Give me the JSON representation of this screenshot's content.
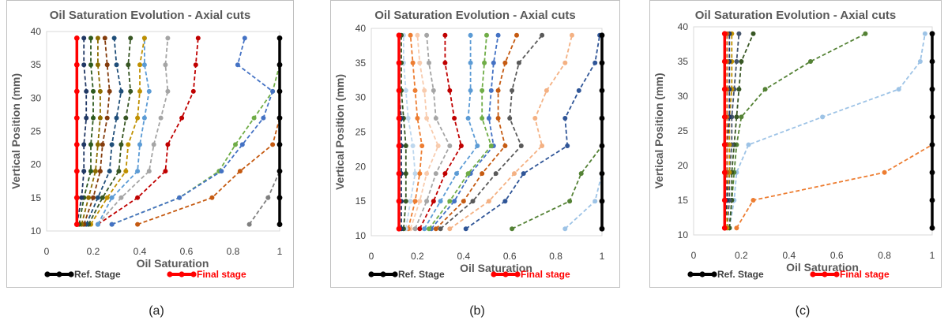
{
  "captions": [
    "(a)",
    "(b)",
    "(c)"
  ],
  "chart_data": [
    {
      "type": "line",
      "title": "Oil Saturation Evolution - Axial cuts",
      "xlabel": "Oil Saturation",
      "ylabel": "Vertical Position (mm)",
      "xlim": [
        0,
        1
      ],
      "ylim": [
        10,
        40
      ],
      "xticks": [
        "0",
        "0.2",
        "0.4",
        "0.6",
        "0.8",
        "1"
      ],
      "yticks": [
        "10",
        "15",
        "20",
        "25",
        "30",
        "35",
        "40"
      ],
      "y": [
        11,
        15,
        19,
        23,
        27,
        31,
        35,
        39
      ],
      "legend": [
        {
          "label": "Ref. Stage",
          "color": "#000000"
        },
        {
          "label": "Final stage",
          "color": "#ff0000"
        }
      ],
      "series": [
        {
          "name": "s1",
          "color": "#7f7f7f",
          "values": [
            0.87,
            0.95,
            1.0,
            null,
            null,
            null,
            null,
            null
          ]
        },
        {
          "name": "s2",
          "color": "#c55a11",
          "values": [
            0.39,
            0.71,
            0.83,
            0.97,
            1.0,
            null,
            null,
            null
          ]
        },
        {
          "name": "s3",
          "color": "#70ad47",
          "values": [
            0.28,
            0.57,
            0.74,
            0.81,
            0.89,
            0.97,
            1.0,
            null
          ]
        },
        {
          "name": "s4",
          "color": "#4472c4",
          "values": [
            0.28,
            0.57,
            0.75,
            0.84,
            0.93,
            0.97,
            0.82,
            0.85
          ]
        },
        {
          "name": "s5",
          "color": "#c00000",
          "values": [
            0.22,
            0.39,
            0.51,
            0.52,
            0.58,
            0.63,
            0.64,
            0.65
          ]
        },
        {
          "name": "s6",
          "color": "#a5a5a5",
          "values": [
            0.22,
            0.32,
            0.44,
            0.46,
            0.49,
            0.52,
            0.51,
            0.52
          ]
        },
        {
          "name": "s7",
          "color": "#5b9bd5",
          "values": [
            0.22,
            0.28,
            0.39,
            0.4,
            0.42,
            0.44,
            0.42,
            0.42
          ]
        },
        {
          "name": "s8",
          "color": "#bf9000",
          "values": [
            0.19,
            0.26,
            0.34,
            0.35,
            0.39,
            0.4,
            0.4,
            0.42
          ]
        },
        {
          "name": "s9",
          "color": "#375623",
          "values": [
            0.18,
            0.24,
            0.31,
            0.32,
            0.34,
            0.36,
            0.35,
            0.36
          ]
        },
        {
          "name": "s10",
          "color": "#1f4e79",
          "values": [
            0.17,
            0.22,
            0.27,
            0.28,
            0.3,
            0.32,
            0.3,
            0.29
          ]
        },
        {
          "name": "s11",
          "color": "#843c0c",
          "values": [
            0.16,
            0.2,
            0.23,
            0.24,
            0.26,
            0.27,
            0.26,
            0.25
          ]
        },
        {
          "name": "s12",
          "color": "#8c6d00",
          "values": [
            0.15,
            0.18,
            0.21,
            0.22,
            0.23,
            0.23,
            0.22,
            0.22
          ]
        },
        {
          "name": "s13",
          "color": "#2e5a1e",
          "values": [
            0.14,
            0.16,
            0.19,
            0.19,
            0.2,
            0.2,
            0.19,
            0.19
          ]
        },
        {
          "name": "s14",
          "color": "#203864",
          "values": [
            0.13,
            0.15,
            0.16,
            0.16,
            0.17,
            0.17,
            0.16,
            0.16
          ]
        },
        {
          "name": "Ref. Stage",
          "color": "#000000",
          "solid": true,
          "values": [
            1,
            1,
            1,
            1,
            1,
            1,
            1,
            1
          ]
        },
        {
          "name": "Final stage",
          "color": "#ff0000",
          "solid": true,
          "values": [
            0.13,
            0.13,
            0.13,
            0.13,
            0.13,
            0.13,
            0.13,
            0.13
          ]
        }
      ]
    },
    {
      "type": "line",
      "title": "Oil Saturation Evolution - Axial cuts",
      "xlabel": "Oil Saturation",
      "ylabel": "Vertical Position (mm)",
      "xlim": [
        0,
        1
      ],
      "ylim": [
        10,
        40
      ],
      "xticks": [
        "0",
        "0.2",
        "0.4",
        "0.6",
        "0.8",
        "1"
      ],
      "yticks": [
        "10",
        "15",
        "20",
        "25",
        "30",
        "35",
        "40"
      ],
      "y": [
        11,
        15,
        19,
        23,
        27,
        31,
        35,
        39
      ],
      "legend": [
        {
          "label": "Ref. Stage",
          "color": "#000000"
        },
        {
          "label": "Final stage",
          "color": "#ff0000"
        }
      ],
      "series": [
        {
          "name": "s1",
          "color": "#9dc3e6",
          "values": [
            0.84,
            0.97,
            1.0,
            null,
            null,
            null,
            null,
            null
          ]
        },
        {
          "name": "s2",
          "color": "#548235",
          "values": [
            0.61,
            0.86,
            0.91,
            1.0,
            null,
            null,
            null,
            null
          ]
        },
        {
          "name": "s3",
          "color": "#2f5597",
          "values": [
            0.41,
            0.58,
            0.66,
            0.85,
            0.84,
            0.9,
            0.97,
            0.99
          ]
        },
        {
          "name": "s4",
          "color": "#f4b183",
          "values": [
            0.34,
            0.51,
            0.62,
            0.74,
            0.71,
            0.76,
            0.84,
            0.87
          ]
        },
        {
          "name": "s5",
          "color": "#595959",
          "values": [
            0.3,
            0.44,
            0.54,
            0.65,
            0.6,
            0.61,
            0.64,
            0.74
          ]
        },
        {
          "name": "s6",
          "color": "#c55a11",
          "values": [
            0.28,
            0.4,
            0.48,
            0.58,
            0.55,
            0.55,
            0.58,
            0.63
          ]
        },
        {
          "name": "s7",
          "color": "#4472c4",
          "values": [
            0.26,
            0.36,
            0.43,
            0.53,
            0.51,
            0.52,
            0.53,
            0.55
          ]
        },
        {
          "name": "s8",
          "color": "#70ad47",
          "values": [
            0.25,
            0.34,
            0.42,
            0.52,
            0.48,
            0.48,
            0.49,
            0.5
          ]
        },
        {
          "name": "s9",
          "color": "#5b9bd5",
          "values": [
            0.23,
            0.3,
            0.37,
            0.46,
            0.42,
            0.43,
            0.43,
            0.43
          ]
        },
        {
          "name": "s10",
          "color": "#c00000",
          "values": [
            0.21,
            0.27,
            0.32,
            0.39,
            0.36,
            0.34,
            0.32,
            0.32
          ]
        },
        {
          "name": "s11",
          "color": "#a5a5a5",
          "values": [
            0.19,
            0.24,
            0.28,
            0.34,
            0.28,
            0.27,
            0.25,
            0.24
          ]
        },
        {
          "name": "s12",
          "color": "#f8cbad",
          "values": [
            0.17,
            0.21,
            0.24,
            0.29,
            0.24,
            0.23,
            0.21,
            0.2
          ]
        },
        {
          "name": "s13",
          "color": "#ed7d31",
          "values": [
            0.16,
            0.19,
            0.21,
            0.22,
            0.2,
            0.19,
            0.18,
            0.17
          ]
        },
        {
          "name": "s14",
          "color": "#bdd7ee",
          "values": [
            0.15,
            0.17,
            0.19,
            0.18,
            0.16,
            0.15,
            0.14,
            0.14
          ]
        },
        {
          "name": "s15",
          "color": "#375623",
          "values": [
            0.14,
            0.15,
            0.15,
            0.15,
            0.14,
            0.13,
            0.13,
            0.13
          ]
        },
        {
          "name": "s16",
          "color": "#1f3864",
          "values": [
            0.13,
            0.13,
            0.13,
            0.13,
            0.13,
            0.12,
            0.12,
            0.12
          ]
        },
        {
          "name": "Ref. Stage",
          "color": "#000000",
          "solid": true,
          "values": [
            1,
            1,
            1,
            1,
            1,
            1,
            1,
            1
          ]
        },
        {
          "name": "Final stage",
          "color": "#ff0000",
          "solid": true,
          "values": [
            0.12,
            0.12,
            0.12,
            0.12,
            0.12,
            0.12,
            0.12,
            0.12
          ]
        }
      ]
    },
    {
      "type": "line",
      "title": "Oil Saturation Evolution - Axial cuts",
      "xlabel": "Oil Saturation",
      "ylabel": "Vertical Position (mm)",
      "xlim": [
        0,
        1
      ],
      "ylim": [
        10,
        40
      ],
      "xticks": [
        "0",
        "0.2",
        "0.4",
        "0.6",
        "0.8",
        "1"
      ],
      "yticks": [
        "10",
        "15",
        "20",
        "25",
        "30",
        "35",
        "40"
      ],
      "y": [
        11,
        15,
        19,
        23,
        27,
        31,
        35,
        39
      ],
      "legend": [
        {
          "label": "Ref. Stage",
          "color": "#000000"
        },
        {
          "label": "Final stage",
          "color": "#ff0000"
        }
      ],
      "series": [
        {
          "name": "s1",
          "color": "#ed7d31",
          "values": [
            0.18,
            0.25,
            0.8,
            1.0,
            null,
            null,
            null,
            null
          ]
        },
        {
          "name": "s2",
          "color": "#9dc3e6",
          "values": [
            0.15,
            0.17,
            0.18,
            0.23,
            0.54,
            0.86,
            0.95,
            0.97
          ]
        },
        {
          "name": "s3",
          "color": "#548235",
          "values": [
            0.15,
            0.16,
            0.17,
            0.18,
            0.2,
            0.3,
            0.49,
            0.72
          ]
        },
        {
          "name": "s4",
          "color": "#375623",
          "values": [
            0.15,
            0.16,
            0.16,
            0.17,
            0.18,
            0.19,
            0.2,
            0.25
          ]
        },
        {
          "name": "s5",
          "color": "#44546a",
          "values": [
            0.14,
            0.15,
            0.15,
            0.16,
            0.16,
            0.17,
            0.18,
            0.19
          ]
        },
        {
          "name": "s6",
          "color": "#bf9000",
          "values": [
            0.14,
            0.14,
            0.15,
            0.15,
            0.15,
            0.16,
            0.16,
            0.16
          ]
        },
        {
          "name": "s7",
          "color": "#1f3864",
          "values": [
            0.13,
            0.14,
            0.14,
            0.14,
            0.15,
            0.15,
            0.15,
            0.15
          ]
        },
        {
          "name": "s8",
          "color": "#c55a11",
          "values": [
            0.13,
            0.13,
            0.14,
            0.14,
            0.14,
            0.14,
            0.14,
            0.14
          ]
        },
        {
          "name": "Ref. Stage",
          "color": "#000000",
          "solid": true,
          "values": [
            1,
            1,
            1,
            1,
            1,
            1,
            1,
            1
          ]
        },
        {
          "name": "Final stage",
          "color": "#ff0000",
          "solid": true,
          "values": [
            0.13,
            0.13,
            0.13,
            0.13,
            0.13,
            0.13,
            0.13,
            0.13
          ]
        }
      ]
    }
  ]
}
